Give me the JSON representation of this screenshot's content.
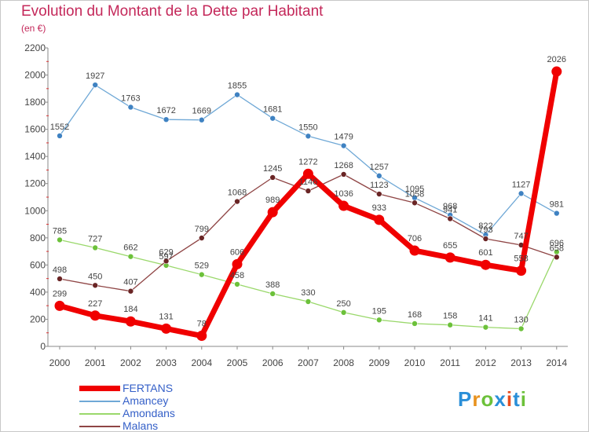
{
  "title": "Evolution du Montant de la Dette par Habitant",
  "unit_label": "(en €)",
  "logo_text": "Proxiti",
  "chart_data": {
    "type": "line",
    "title": "Evolution du Montant de la Dette par Habitant",
    "subtitle": "(en €)",
    "xlabel": "",
    "ylabel": "",
    "ylim": [
      0,
      2200
    ],
    "y_ticks": [
      0,
      200,
      400,
      600,
      800,
      1000,
      1200,
      1400,
      1600,
      1800,
      2000,
      2200
    ],
    "x": [
      "2000",
      "2001",
      "2002",
      "2003",
      "2004",
      "2005",
      "2006",
      "2007",
      "2008",
      "2009",
      "2010",
      "2011",
      "2012",
      "2013",
      "2014"
    ],
    "legend_position": "bottom-left",
    "grid": false,
    "series": [
      {
        "name": "Amancey",
        "color": "#6fa8d6",
        "marker_color": "#3f82c2",
        "width": 1.3,
        "marker_radius": 3.5,
        "label_position": "above",
        "values": [
          1552,
          1927,
          1763,
          1672,
          1669,
          1855,
          1681,
          1550,
          1479,
          1257,
          1095,
          968,
          822,
          1127,
          981
        ]
      },
      {
        "name": "Amondans",
        "color": "#9ad86b",
        "marker_color": "#6cc13a",
        "width": 1.3,
        "marker_radius": 3.5,
        "label_position": "above",
        "values": [
          785,
          727,
          662,
          597,
          529,
          458,
          388,
          330,
          250,
          195,
          168,
          158,
          141,
          130,
          696
        ]
      },
      {
        "name": "Malans",
        "color": "#8f4545",
        "marker_color": "#6a2525",
        "width": 1.3,
        "marker_radius": 3.5,
        "label_position": "above",
        "values": [
          498,
          450,
          407,
          629,
          799,
          1068,
          1245,
          1146,
          1268,
          1123,
          1058,
          941,
          793,
          747,
          658
        ]
      },
      {
        "name": "FERTANS",
        "color": "#f00000",
        "marker_color": "#f00000",
        "width": 7,
        "marker_radius": 6.5,
        "label_position": "above",
        "values": [
          299,
          227,
          184,
          131,
          78,
          606,
          989,
          1272,
          1036,
          933,
          706,
          655,
          601,
          558,
          2026
        ]
      }
    ]
  },
  "legend": [
    {
      "name": "FERTANS",
      "color": "#f00000"
    },
    {
      "name": "Amancey",
      "color": "#6fa8d6"
    },
    {
      "name": "Amondans",
      "color": "#9ad86b"
    },
    {
      "name": "Malans",
      "color": "#8f4545"
    }
  ]
}
